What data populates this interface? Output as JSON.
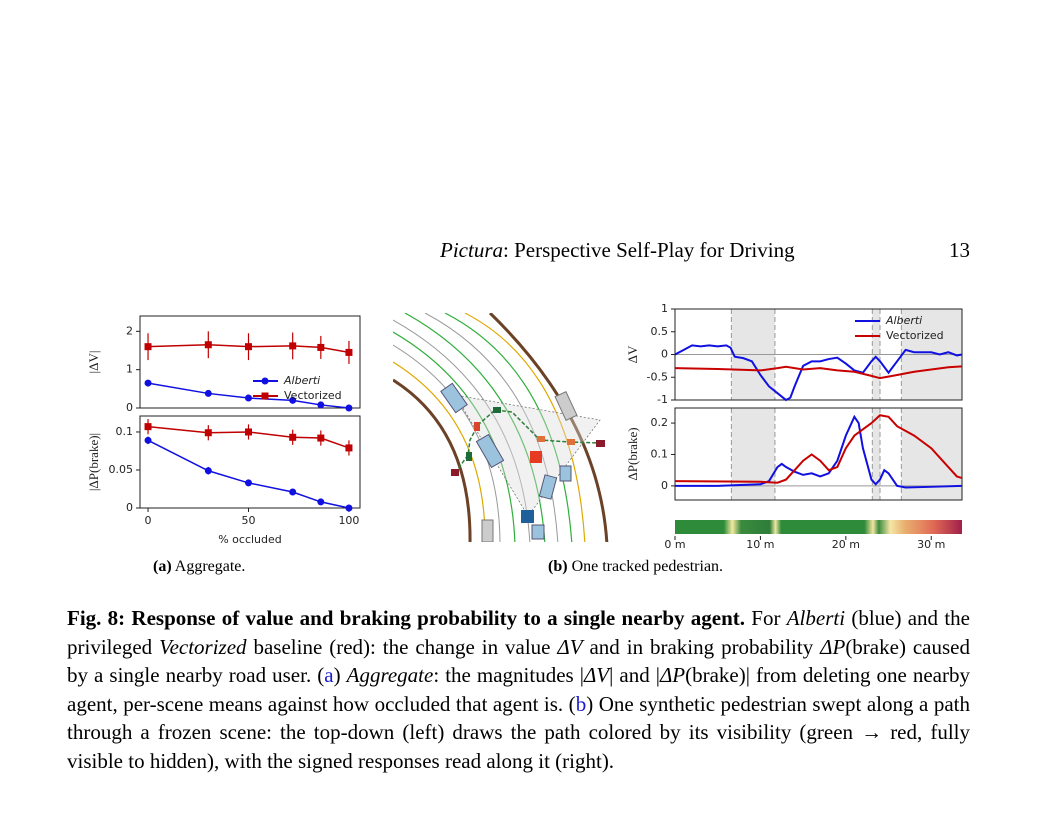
{
  "header": {
    "title_italic": "Pictura",
    "title_rest": ": Perspective Self-Play for Driving",
    "page": "13"
  },
  "chart_data": [
    {
      "type": "line",
      "ylabel": "|ΔV|",
      "x": [
        0,
        30,
        50,
        72,
        86,
        100
      ],
      "xlim": [
        -4,
        105.5
      ],
      "ylim": [
        0,
        2.4
      ],
      "yticks": [
        0,
        1,
        2
      ],
      "legend": "lower right",
      "series": [
        {
          "name": "Alberti",
          "color": "#1010e0",
          "marker": "circle",
          "values": [
            0.65,
            0.38,
            0.26,
            0.2,
            0.08,
            0.0
          ],
          "errors": [
            0.05,
            0.04,
            0.03,
            0.03,
            0.03,
            0.02
          ]
        },
        {
          "name": "Vectorized",
          "color": "#c00000",
          "marker": "square",
          "values": [
            1.6,
            1.65,
            1.6,
            1.62,
            1.58,
            1.45
          ],
          "errors": [
            0.35,
            0.35,
            0.35,
            0.35,
            0.3,
            0.3
          ]
        }
      ]
    },
    {
      "type": "line",
      "ylabel": "|ΔP(brake)|",
      "xlabel": "% occluded",
      "x": [
        0,
        30,
        50,
        72,
        86,
        100
      ],
      "xlim": [
        -4,
        105.5
      ],
      "ylim": [
        0,
        0.121
      ],
      "yticks": [
        0,
        0.05,
        0.1
      ],
      "xticks": [
        0,
        50,
        100
      ],
      "series": [
        {
          "color": "#1010e0",
          "marker": "circle",
          "values": [
            0.089,
            0.049,
            0.033,
            0.021,
            0.008,
            0.0
          ],
          "errors": [
            0.005,
            0.005,
            0.003,
            0.003,
            0.002,
            0.002
          ]
        },
        {
          "color": "#c00000",
          "marker": "square",
          "values": [
            0.107,
            0.099,
            0.1,
            0.093,
            0.092,
            0.079
          ],
          "errors": [
            0.01,
            0.01,
            0.01,
            0.01,
            0.01,
            0.01
          ]
        }
      ]
    },
    {
      "type": "line",
      "ylabel": "ΔV",
      "xlim": [
        0,
        33.6
      ],
      "ylim": [
        -1,
        1
      ],
      "yticks": [
        -1,
        -0.5,
        0,
        0.5,
        1
      ],
      "legend": "upper right",
      "hline": 0,
      "shaded": [
        [
          6.6,
          11.7
        ],
        [
          23.1,
          24.0
        ],
        [
          26.5,
          33.6
        ]
      ],
      "vlines": [
        6.6,
        11.7,
        23.1,
        24.0,
        26.5
      ],
      "series": [
        {
          "name": "Alberti",
          "color": "#1010e0",
          "x": [
            0,
            1,
            2,
            3,
            4,
            5,
            6,
            6.5,
            7,
            8,
            9,
            10,
            11,
            12,
            13,
            13.5,
            14,
            15,
            16,
            17,
            18,
            19,
            20,
            21,
            22,
            23,
            23.5,
            24,
            25,
            26,
            27,
            28,
            29,
            30,
            31,
            32,
            33,
            33.6
          ],
          "values": [
            0,
            0.1,
            0.2,
            0.18,
            0.2,
            0.18,
            0.2,
            0.15,
            -0.05,
            -0.08,
            -0.15,
            -0.45,
            -0.7,
            -0.85,
            -1.0,
            -0.95,
            -0.7,
            -0.25,
            -0.15,
            -0.15,
            -0.1,
            -0.07,
            -0.2,
            -0.35,
            -0.4,
            -0.15,
            -0.05,
            -0.15,
            -0.4,
            -0.15,
            0.1,
            0.05,
            0.05,
            0.05,
            0.0,
            0.05,
            -0.02,
            0
          ]
        },
        {
          "name": "Vectorized",
          "color": "#c80000",
          "x": [
            0,
            5,
            10,
            12,
            13,
            15,
            17,
            19,
            21,
            23,
            24,
            26,
            28,
            30,
            32,
            33.6
          ],
          "values": [
            -0.3,
            -0.32,
            -0.35,
            -0.3,
            -0.27,
            -0.33,
            -0.3,
            -0.35,
            -0.38,
            -0.47,
            -0.52,
            -0.45,
            -0.38,
            -0.33,
            -0.28,
            -0.26
          ]
        }
      ]
    },
    {
      "type": "line",
      "ylabel": "ΔP(brake)",
      "xlim": [
        0,
        33.6
      ],
      "ylim": [
        -0.045,
        0.248
      ],
      "yticks": [
        0,
        0.1,
        0.2
      ],
      "hline": 0,
      "xticks": [
        {
          "value": 0,
          "label": "0 m"
        },
        {
          "value": 10,
          "label": "10 m"
        },
        {
          "value": 20,
          "label": "20 m"
        },
        {
          "value": 30,
          "label": "30 m"
        }
      ],
      "shaded": [
        [
          6.6,
          11.7
        ],
        [
          23.1,
          24.0
        ],
        [
          26.5,
          33.6
        ]
      ],
      "vlines": [
        6.6,
        11.7,
        23.1,
        24.0,
        26.5
      ],
      "series": [
        {
          "color": "#1010e0",
          "x": [
            0,
            5,
            10,
            11,
            12,
            12.5,
            13,
            14,
            15,
            16,
            17,
            18,
            19,
            20,
            21,
            21.5,
            22,
            23,
            23.5,
            24,
            24.5,
            25,
            26,
            27,
            30,
            33.6
          ],
          "values": [
            0,
            0,
            0.005,
            0.015,
            0.06,
            0.07,
            0.06,
            0.045,
            0.035,
            0.04,
            0.03,
            0.04,
            0.08,
            0.16,
            0.22,
            0.2,
            0.12,
            0.02,
            0.005,
            0.02,
            0.05,
            0.04,
            0.0,
            -0.005,
            -0.003,
            0.0
          ]
        },
        {
          "color": "#c80000",
          "x": [
            0,
            10,
            12,
            13,
            14,
            15,
            16,
            17,
            18,
            19,
            20,
            21,
            22,
            23,
            24,
            25,
            26,
            28,
            30,
            32,
            33,
            33.6
          ],
          "values": [
            0.015,
            0.013,
            0.01,
            0.02,
            0.05,
            0.08,
            0.1,
            0.08,
            0.05,
            0.06,
            0.12,
            0.16,
            0.18,
            0.2,
            0.225,
            0.22,
            0.19,
            0.16,
            0.12,
            0.06,
            0.03,
            0.025
          ]
        }
      ]
    }
  ],
  "subcaptions": [
    {
      "tag": "(a)",
      "text": " Aggregate."
    },
    {
      "tag": "(b)",
      "text": " One tracked pedestrian."
    }
  ],
  "caption": [
    "Fig. 8: Response of value and braking probability to a single nearby agent.",
    " For ",
    "Alberti",
    " (blue) and the privileged ",
    "Vectorized",
    " baseline (red): the change in value ",
    "ΔV",
    " and in braking probability ",
    "ΔP",
    "(brake) caused by a single nearby road user. (",
    "a",
    ") ",
    "Aggregate",
    ": the magnitudes |",
    "ΔV",
    "| and |",
    "ΔP",
    "(brake)| from deleting one nearby agent, per-scene means against how occluded that agent is. (",
    "b",
    ") One synthetic pedestrian swept along a path through a frozen scene: the top-down (left) draws the path colored by its visibility (green → red, fully visible to hidden), with the signed responses read along it (right)."
  ]
}
